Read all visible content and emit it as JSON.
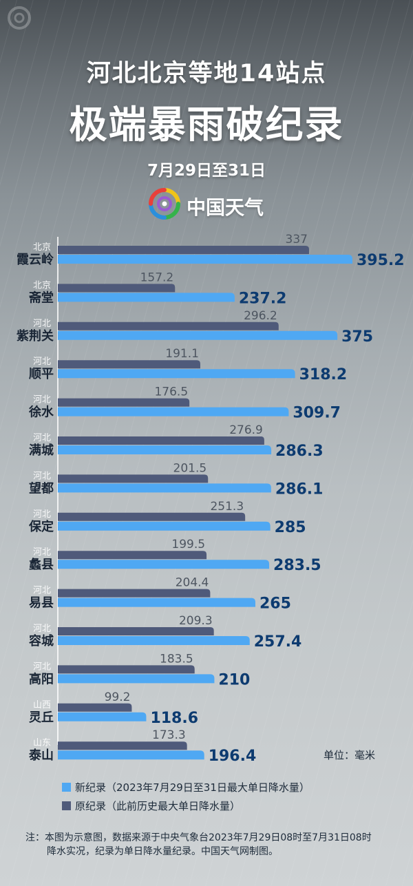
{
  "header": {
    "title_line1": "河北北京等地14站点",
    "title_line2": "极端暴雨破纪录",
    "date": "7月29日至31日",
    "brand": "中国天气"
  },
  "colors": {
    "new_record": "#4fa8f3",
    "old_record": "#4f5a7a",
    "value_new": "#0d3b70",
    "value_old": "#4d5560"
  },
  "unit": "单位：毫米",
  "legend": {
    "new_record": "新纪录（2023年7月29日至31日最大单日降水量）",
    "old_record": "原纪录（此前历史最大单日降水量）"
  },
  "note": {
    "label": "注：",
    "line1": "本图为示意图，数据来源于中央气象台2023年7月29日08时至7月31日08时",
    "line2": "降水实况，纪录为单日降水量纪录。中国天气网制图。"
  },
  "chart_data": {
    "type": "bar",
    "orientation": "horizontal",
    "categories": [
      "霞云岭",
      "斋堂",
      "紫荆关",
      "顺平",
      "徐水",
      "满城",
      "望都",
      "保定",
      "蠡县",
      "易县",
      "容城",
      "高阳",
      "灵丘",
      "泰山"
    ],
    "provinces": [
      "北京",
      "北京",
      "河北",
      "河北",
      "河北",
      "河北",
      "河北",
      "河北",
      "河北",
      "河北",
      "河北",
      "河北",
      "山西",
      "山东"
    ],
    "series": [
      {
        "key": "old",
        "values": [
          337,
          157.2,
          296.2,
          191.1,
          176.5,
          276.9,
          201.5,
          251.3,
          199.5,
          204.4,
          209.3,
          183.5,
          99.2,
          173.3
        ]
      },
      {
        "key": "new",
        "values": [
          395.2,
          237.2,
          375,
          318.2,
          309.7,
          286.3,
          286.1,
          285,
          283.5,
          265,
          257.4,
          210,
          118.6,
          196.4
        ]
      }
    ],
    "xlim": [
      0,
      395.2
    ]
  }
}
